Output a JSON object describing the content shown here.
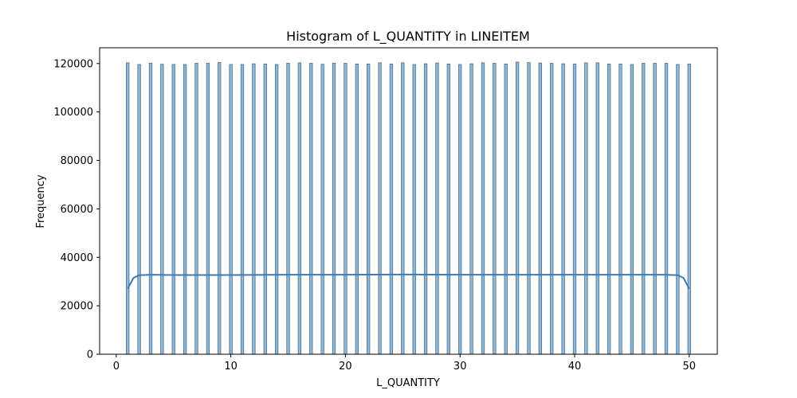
{
  "chart_data": {
    "type": "bar",
    "title": "Histogram of L_QUANTITY in LINEITEM",
    "xlabel": "L_QUANTITY",
    "ylabel": "Frequency",
    "xlim": [
      -1.45,
      52.45
    ],
    "ylim": [
      0,
      126500
    ],
    "xticks": [
      0,
      10,
      20,
      30,
      40,
      50
    ],
    "yticks": [
      0,
      20000,
      40000,
      60000,
      80000,
      100000,
      120000
    ],
    "xtick_labels": [
      "0",
      "10",
      "20",
      "30",
      "40",
      "50"
    ],
    "ytick_labels": [
      "0",
      "20000",
      "40000",
      "60000",
      "80000",
      "100000",
      "120000"
    ],
    "bin_width": 0.245,
    "categories": [
      1,
      2,
      3,
      4,
      5,
      6,
      7,
      8,
      9,
      10,
      11,
      12,
      13,
      14,
      15,
      16,
      17,
      18,
      19,
      20,
      21,
      22,
      23,
      24,
      25,
      26,
      27,
      28,
      29,
      30,
      31,
      32,
      33,
      34,
      35,
      36,
      37,
      38,
      39,
      40,
      41,
      42,
      43,
      44,
      45,
      46,
      47,
      48,
      49,
      50
    ],
    "values": [
      120300,
      119600,
      120100,
      119700,
      119600,
      119600,
      120100,
      120100,
      120400,
      119600,
      119600,
      119900,
      119800,
      119600,
      120100,
      120300,
      120100,
      119700,
      120100,
      120100,
      119800,
      119800,
      120300,
      119800,
      120300,
      119600,
      119900,
      120200,
      119800,
      119600,
      119900,
      120300,
      120100,
      119800,
      120600,
      120400,
      120200,
      120100,
      119900,
      119800,
      120300,
      120300,
      119800,
      119800,
      119600,
      120100,
      120100,
      120100,
      119600,
      119800
    ],
    "kde": {
      "x": [
        1,
        1.5,
        2,
        3,
        5,
        10,
        15,
        20,
        25,
        30,
        35,
        40,
        45,
        48,
        49,
        49.5,
        50
      ],
      "y": [
        27000,
        31500,
        32600,
        32800,
        32700,
        32700,
        32800,
        32800,
        32900,
        32800,
        32800,
        32800,
        32800,
        32800,
        32600,
        31500,
        27000
      ]
    },
    "colors": {
      "bar_fill": "#8fb8d8",
      "bar_edge": "#4d6e8a",
      "kde_line": "#3a7db5"
    },
    "grid": false
  }
}
